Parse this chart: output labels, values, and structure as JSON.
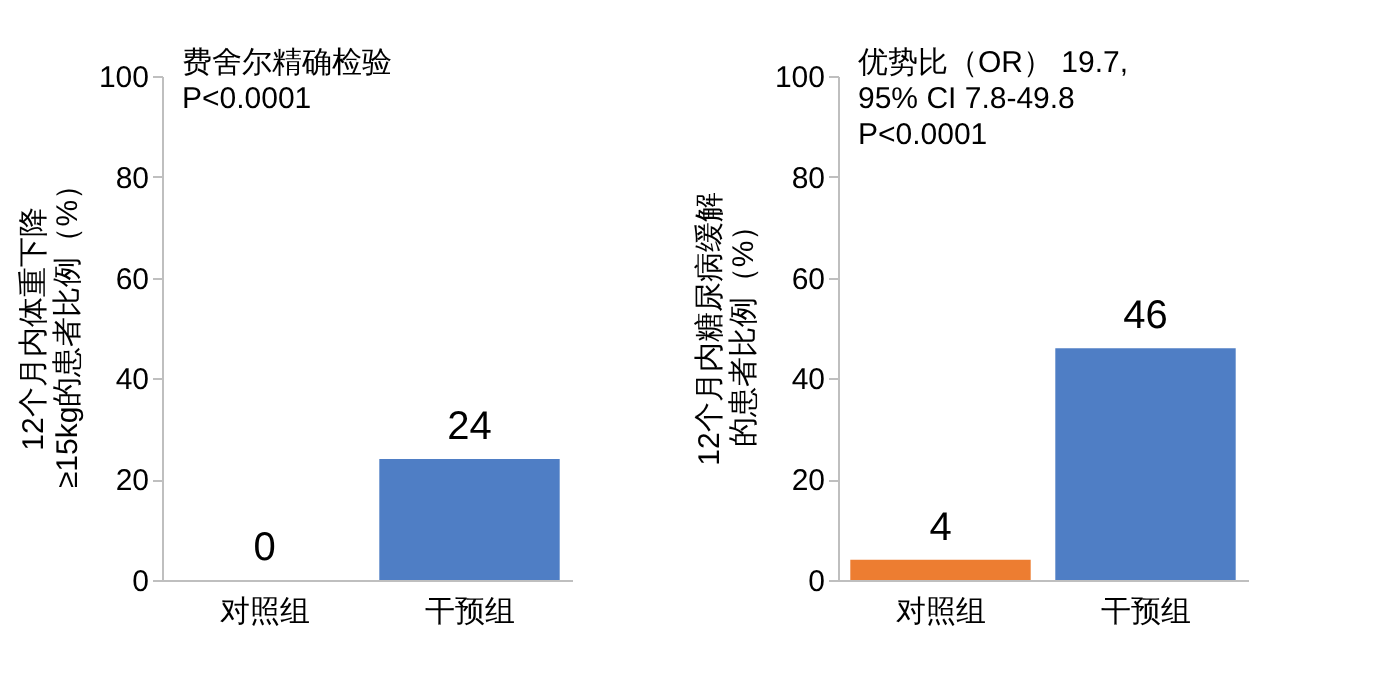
{
  "chart_data": [
    {
      "type": "bar",
      "ylabel": "12个月内体重下降\n≥15kg的患者比例（%）",
      "categories": [
        "对照组",
        "干预组"
      ],
      "values": [
        0,
        24
      ],
      "colors": [
        "#ed7d31",
        "#4f7ec5"
      ],
      "ylim": [
        0,
        100
      ],
      "yticks": [
        0,
        20,
        40,
        60,
        80,
        100
      ],
      "data_labels": true,
      "grid": false,
      "annotations": [
        "费舍尔精确检验",
        "P<0.0001"
      ]
    },
    {
      "type": "bar",
      "ylabel": "12个月内糖尿病缓解的患者比例（%）",
      "categories": [
        "对照组",
        "干预组"
      ],
      "values": [
        4,
        46
      ],
      "colors": [
        "#ed7d31",
        "#4f7ec5"
      ],
      "ylim": [
        0,
        100
      ],
      "yticks": [
        0,
        20,
        40,
        60,
        80,
        100
      ],
      "data_labels": true,
      "grid": false,
      "annotations": [
        "优势比（OR） 19.7,",
        "95% CI 7.8-49.8",
        "P<0.0001"
      ]
    }
  ]
}
